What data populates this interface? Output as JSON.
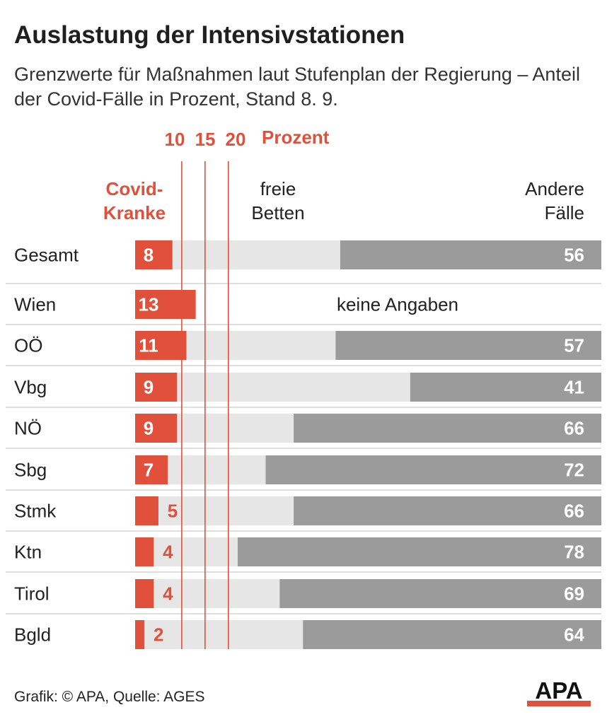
{
  "title": "Auslastung der Intensivstationen",
  "subtitle": "Grenzwerte für Maßnahmen laut Stufenplan der Regierung – Anteil der Covid-Fälle in Prozent, Stand 8. 9.",
  "footer": "Grafik: © APA, Quelle: AGES",
  "logo_text": "APA",
  "colors": {
    "covid": "#e0503a",
    "free": "#e6e6e6",
    "other": "#9b9b9b",
    "threshold": "#e0503a",
    "divider": "#d4d4d4",
    "label_light": "#ffffff"
  },
  "chart_data": {
    "type": "bar",
    "stacked": true,
    "xlim": [
      0,
      100
    ],
    "unit": "Prozent",
    "thresholds": [
      10,
      15,
      20
    ],
    "threshold_labels": [
      "10",
      "15",
      "20"
    ],
    "threshold_unit_label": "Prozent",
    "legend": {
      "covid_line1": "Covid-",
      "covid_line2": "Kranke",
      "free_line1": "freie",
      "free_line2": "Betten",
      "other_line1": "Andere",
      "other_line2": "Fälle"
    },
    "no_data_label": "keine Angaben",
    "categories": [
      "Gesamt",
      "Wien",
      "OÖ",
      "Vbg",
      "NÖ",
      "Sbg",
      "Stmk",
      "Ktn",
      "Tirol",
      "Bgld"
    ],
    "series": [
      {
        "name": "Covid-Kranke",
        "values": [
          8,
          13,
          11,
          9,
          9,
          7,
          5,
          4,
          4,
          2
        ]
      },
      {
        "name": "freie Betten",
        "values": [
          36,
          null,
          32,
          50,
          25,
          21,
          29,
          18,
          27,
          34
        ]
      },
      {
        "name": "Andere Fälle",
        "values": [
          56,
          null,
          57,
          41,
          66,
          72,
          66,
          78,
          69,
          64
        ]
      }
    ]
  }
}
